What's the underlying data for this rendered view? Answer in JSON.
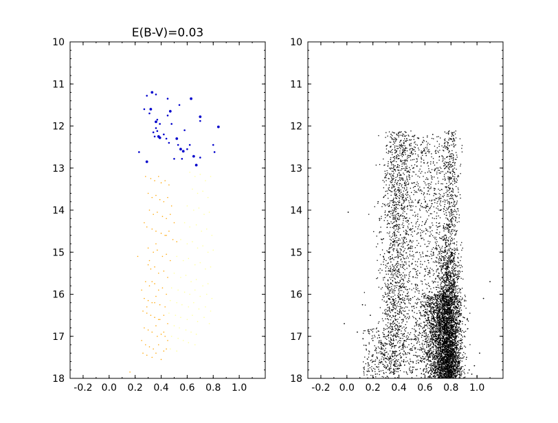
{
  "chart_data": [
    {
      "type": "scatter",
      "title": "E(B-V)=0.03",
      "xlabel": "",
      "ylabel": "",
      "xlim": [
        -0.3,
        1.2
      ],
      "ylim": [
        18,
        10
      ],
      "y_inverted": true,
      "grid": false,
      "legend": "none",
      "xticks": [
        -0.2,
        0.0,
        0.2,
        0.4,
        0.6,
        0.8,
        1.0
      ],
      "xtick_labels": [
        "-0.2",
        "0.0",
        "0.2",
        "0.4",
        "0.6",
        "0.8",
        "1.0"
      ],
      "yticks": [
        10,
        11,
        12,
        13,
        14,
        15,
        16,
        17,
        18
      ],
      "ytick_labels": [
        "10",
        "11",
        "12",
        "13",
        "14",
        "15",
        "16",
        "17",
        "18"
      ],
      "series": [
        {
          "color": "#0000cc",
          "style": "bright-stars-large-dots",
          "x": [
            0.33,
            0.36,
            0.29,
            0.32,
            0.27,
            0.37,
            0.36,
            0.39,
            0.45,
            0.63,
            0.45,
            0.54,
            0.7,
            0.48,
            0.7,
            0.84,
            0.34,
            0.37,
            0.38,
            0.42,
            0.35,
            0.39,
            0.44,
            0.53,
            0.55,
            0.62,
            0.8,
            0.57,
            0.6,
            0.23,
            0.29,
            0.5,
            0.56,
            0.65,
            0.81,
            0.7,
            0.67,
            0.42,
            0.46,
            0.52,
            0.58,
            0.36,
            0.47,
            0.31
          ],
          "y": [
            11.2,
            11.25,
            11.28,
            11.6,
            11.6,
            11.85,
            11.9,
            11.95,
            11.75,
            11.35,
            11.35,
            11.5,
            11.78,
            11.95,
            11.88,
            12.02,
            12.15,
            12.12,
            12.25,
            12.2,
            12.25,
            12.28,
            12.3,
            12.45,
            12.55,
            12.45,
            12.45,
            12.6,
            12.55,
            12.62,
            12.85,
            12.78,
            12.78,
            12.72,
            12.62,
            12.75,
            12.93,
            12.2,
            12.4,
            12.3,
            12.1,
            12.05,
            11.65,
            11.7
          ]
        },
        {
          "color": "#ffa500",
          "style": "faint-dots",
          "x": [
            0.28,
            0.32,
            0.35,
            0.38,
            0.4,
            0.43,
            0.46,
            0.3,
            0.33,
            0.36,
            0.39,
            0.42,
            0.45,
            0.48,
            0.31,
            0.34,
            0.37,
            0.41,
            0.44,
            0.47,
            0.5,
            0.29,
            0.33,
            0.36,
            0.4,
            0.43,
            0.46,
            0.49,
            0.52,
            0.3,
            0.34,
            0.37,
            0.41,
            0.44,
            0.47,
            0.3,
            0.32,
            0.35,
            0.38,
            0.42,
            0.45,
            0.28,
            0.31,
            0.35,
            0.38,
            0.41,
            0.44,
            0.27,
            0.3,
            0.33,
            0.36,
            0.39,
            0.43,
            0.26,
            0.29,
            0.32,
            0.35,
            0.38,
            0.42,
            0.45,
            0.27,
            0.3,
            0.33,
            0.36,
            0.4,
            0.43,
            0.25,
            0.28,
            0.31,
            0.34,
            0.38,
            0.42,
            0.26,
            0.29,
            0.33,
            0.36,
            0.4,
            0.44,
            0.37,
            0.42,
            0.45,
            0.39,
            0.35,
            0.33,
            0.31,
            0.36,
            0.27,
            0.22,
            0.25,
            0.29,
            0.44,
            0.16
          ],
          "y": [
            13.2,
            13.25,
            13.3,
            13.2,
            13.35,
            13.3,
            13.4,
            13.6,
            13.7,
            13.65,
            13.75,
            13.8,
            13.7,
            13.9,
            14.0,
            14.1,
            14.05,
            14.15,
            14.2,
            14.1,
            14.3,
            14.4,
            14.45,
            14.5,
            14.55,
            14.6,
            14.5,
            14.7,
            14.75,
            14.9,
            15.0,
            14.95,
            15.1,
            15.05,
            15.2,
            15.3,
            15.4,
            15.35,
            15.5,
            15.45,
            15.6,
            15.7,
            15.8,
            15.75,
            15.9,
            15.85,
            16.0,
            16.1,
            16.15,
            16.2,
            16.05,
            16.25,
            16.3,
            16.4,
            16.45,
            16.5,
            16.55,
            16.6,
            16.5,
            16.7,
            16.8,
            16.85,
            16.9,
            16.75,
            16.95,
            17.0,
            17.1,
            17.2,
            17.25,
            17.3,
            17.2,
            17.35,
            17.4,
            17.45,
            17.5,
            17.4,
            17.55,
            17.3,
            17.0,
            16.9,
            17.1,
            16.6,
            16.2,
            15.7,
            15.2,
            14.8,
            14.3,
            15.1,
            15.9,
            16.3,
            14.6,
            17.85
          ]
        },
        {
          "color": "#ffff99",
          "style": "faint-dots",
          "x": [
            0.62,
            0.66,
            0.7,
            0.74,
            0.78,
            0.64,
            0.68,
            0.72,
            0.76,
            0.6,
            0.65,
            0.69,
            0.73,
            0.77,
            0.58,
            0.62,
            0.67,
            0.71,
            0.75,
            0.79,
            0.55,
            0.6,
            0.64,
            0.68,
            0.72,
            0.76,
            0.8,
            0.52,
            0.57,
            0.61,
            0.66,
            0.7,
            0.74,
            0.78,
            0.5,
            0.55,
            0.59,
            0.63,
            0.67,
            0.72,
            0.76,
            0.48,
            0.53,
            0.58,
            0.62,
            0.66,
            0.7,
            0.75,
            0.79,
            0.47,
            0.52,
            0.56,
            0.61,
            0.65,
            0.69,
            0.74,
            0.78,
            0.46,
            0.51,
            0.55,
            0.6,
            0.64,
            0.68,
            0.73,
            0.77,
            0.5,
            0.54,
            0.59,
            0.63,
            0.67,
            0.48,
            0.53,
            0.57,
            0.61,
            0.66,
            0.47,
            0.52
          ],
          "y": [
            13.1,
            13.2,
            13.15,
            13.3,
            13.2,
            13.5,
            13.6,
            13.55,
            13.7,
            13.9,
            14.0,
            13.95,
            14.1,
            14.05,
            14.3,
            14.4,
            14.35,
            14.5,
            14.45,
            14.6,
            14.7,
            14.8,
            14.75,
            14.9,
            14.85,
            15.0,
            14.95,
            15.1,
            15.2,
            15.15,
            15.3,
            15.25,
            15.4,
            15.35,
            15.5,
            15.6,
            15.55,
            15.7,
            15.65,
            15.8,
            15.75,
            15.85,
            15.9,
            15.95,
            16.0,
            15.9,
            16.05,
            16.0,
            16.1,
            16.15,
            16.2,
            16.25,
            16.3,
            16.2,
            16.35,
            16.3,
            16.4,
            16.45,
            16.5,
            16.55,
            16.6,
            16.5,
            16.65,
            16.55,
            16.7,
            16.75,
            16.8,
            16.85,
            16.9,
            16.95,
            17.0,
            17.05,
            17.1,
            17.15,
            17.2,
            17.3,
            17.35
          ]
        }
      ]
    },
    {
      "type": "scatter",
      "title": "",
      "xlabel": "",
      "ylabel": "",
      "xlim": [
        -0.3,
        1.2
      ],
      "ylim": [
        18,
        10
      ],
      "y_inverted": true,
      "grid": false,
      "legend": "none",
      "xticks": [
        -0.2,
        0.0,
        0.2,
        0.4,
        0.6,
        0.8,
        1.0
      ],
      "xtick_labels": [
        "-0.2",
        "0.0",
        "0.2",
        "0.4",
        "0.6",
        "0.8",
        "1.0"
      ],
      "yticks": [
        10,
        11,
        12,
        13,
        14,
        15,
        16,
        17,
        18
      ],
      "ytick_labels": [
        "10",
        "11",
        "12",
        "13",
        "14",
        "15",
        "16",
        "17",
        "18"
      ],
      "series": [
        {
          "color": "#000000",
          "style": "dense-points",
          "x": [
            0.01,
            0.12,
            0.18,
            0.2,
            0.2,
            0.22,
            0.24,
            0.25,
            0.27,
            0.28,
            0.29,
            0.3,
            0.31,
            0.32,
            0.33,
            0.34,
            0.35,
            0.36,
            0.37,
            0.38,
            0.39,
            0.4,
            0.41,
            0.42,
            0.43,
            0.44,
            0.45,
            0.46,
            0.47,
            0.48,
            0.5,
            0.52,
            0.54,
            0.56,
            0.58,
            0.6,
            0.62,
            0.64,
            0.66,
            0.68,
            0.7,
            0.72,
            0.74,
            0.76,
            0.78,
            0.8,
            0.82,
            0.84,
            0.86,
            0.88,
            0.9,
            0.92,
            0.94,
            0.96,
            0.98,
            1.0,
            1.02,
            1.05,
            1.1,
            -0.02,
            0.08
          ],
          "y": [
            14.05,
            16.25,
            16.5,
            17.1,
            17.6,
            17.9,
            13.8,
            14.2,
            14.7,
            15.1,
            15.6,
            16.0,
            16.4,
            16.8,
            17.2,
            13.0,
            13.4,
            13.8,
            14.2,
            14.6,
            15.0,
            15.4,
            15.8,
            16.2,
            16.6,
            17.0,
            17.4,
            12.3,
            12.7,
            13.1,
            14.0,
            14.5,
            15.0,
            15.5,
            16.0,
            16.5,
            17.0,
            17.5,
            12.2,
            12.6,
            13.0,
            14.0,
            15.0,
            16.0,
            17.0,
            15.8,
            16.6,
            17.3,
            17.6,
            17.1,
            16.9,
            17.5,
            17.8,
            17.9,
            17.7,
            17.95,
            17.4,
            16.1,
            15.7,
            16.7,
            16.9
          ]
        }
      ]
    }
  ]
}
